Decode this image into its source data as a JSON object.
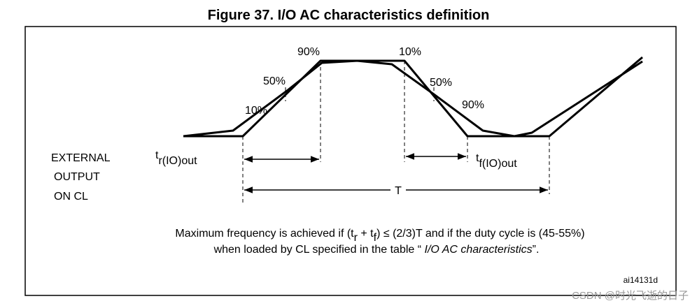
{
  "title": "Figure 37. I/O AC characteristics definition",
  "rise_levels": [
    "10%",
    "50%",
    "90%"
  ],
  "fall_levels": [
    "10%",
    "50%",
    "90%"
  ],
  "signal_label": [
    "EXTERNAL",
    "OUTPUT",
    "ON CL"
  ],
  "rise_time": {
    "symbol": "t",
    "subscript": "r(IO)out"
  },
  "fall_time": {
    "symbol": "t",
    "subscript": "f(IO)out"
  },
  "period": "T",
  "note": {
    "line1": [
      "Maximum frequency is achieved if (t",
      "r",
      " + t",
      "f",
      ") ≤ (2/3)T and if the duty cycle is (45-55%)"
    ],
    "line2": [
      "when loaded by CL specified in the table “ ",
      "I/O AC characteristics",
      "”."
    ]
  },
  "figure_id": "ai14131d",
  "watermark": "CSDN @时光飞逝的日子"
}
